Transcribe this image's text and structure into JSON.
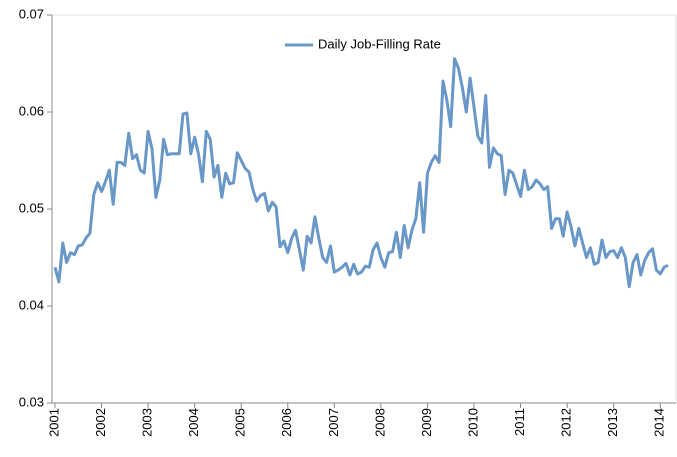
{
  "chart_data": {
    "type": "line",
    "categories": [
      "2001",
      null,
      null,
      null,
      null,
      null,
      null,
      null,
      null,
      null,
      null,
      null,
      "2002",
      null,
      null,
      null,
      null,
      null,
      null,
      null,
      null,
      null,
      null,
      null,
      "2003",
      null,
      null,
      null,
      null,
      null,
      null,
      null,
      null,
      null,
      null,
      null,
      "2004",
      null,
      null,
      null,
      null,
      null,
      null,
      null,
      null,
      null,
      null,
      null,
      "2005",
      null,
      null,
      null,
      null,
      null,
      null,
      null,
      null,
      null,
      null,
      null,
      "2006",
      null,
      null,
      null,
      null,
      null,
      null,
      null,
      null,
      null,
      null,
      null,
      "2007",
      null,
      null,
      null,
      null,
      null,
      null,
      null,
      null,
      null,
      null,
      null,
      "2008",
      null,
      null,
      null,
      null,
      null,
      null,
      null,
      null,
      null,
      null,
      null,
      "2009",
      null,
      null,
      null,
      null,
      null,
      null,
      null,
      null,
      null,
      null,
      null,
      "2010",
      null,
      null,
      null,
      null,
      null,
      null,
      null,
      null,
      null,
      null,
      null,
      "2011",
      null,
      null,
      null,
      null,
      null,
      null,
      null,
      null,
      null,
      null,
      null,
      "2012",
      null,
      null,
      null,
      null,
      null,
      null,
      null,
      null,
      null,
      null,
      null,
      "2013",
      null,
      null,
      null,
      null,
      null,
      null,
      null,
      null,
      null,
      null,
      null,
      "2014",
      null,
      null
    ],
    "series": [
      {
        "name": "Daily Job-Filling Rate",
        "color": "#6897c8",
        "values": [
          0.044,
          0.0425,
          0.0465,
          0.0445,
          0.0455,
          0.0453,
          0.0462,
          0.0463,
          0.047,
          0.0475,
          0.0515,
          0.0527,
          0.0518,
          0.0528,
          0.054,
          0.0505,
          0.0548,
          0.0548,
          0.0545,
          0.0578,
          0.0552,
          0.0556,
          0.054,
          0.0537,
          0.058,
          0.0562,
          0.0512,
          0.053,
          0.0572,
          0.0556,
          0.0557,
          0.0557,
          0.0557,
          0.0598,
          0.0599,
          0.0557,
          0.0574,
          0.0556,
          0.0528,
          0.058,
          0.0572,
          0.0533,
          0.0545,
          0.0512,
          0.0537,
          0.0526,
          0.0527,
          0.0558,
          0.055,
          0.0542,
          0.0538,
          0.052,
          0.0508,
          0.0514,
          0.0516,
          0.0498,
          0.0507,
          0.0502,
          0.0461,
          0.0467,
          0.0455,
          0.047,
          0.0478,
          0.0458,
          0.0437,
          0.0472,
          0.0465,
          0.0492,
          0.047,
          0.045,
          0.0445,
          0.0462,
          0.0435,
          0.0437,
          0.044,
          0.0444,
          0.0432,
          0.0443,
          0.0433,
          0.0435,
          0.0441,
          0.044,
          0.0458,
          0.0465,
          0.045,
          0.044,
          0.0455,
          0.0456,
          0.0476,
          0.045,
          0.0483,
          0.046,
          0.0478,
          0.049,
          0.0527,
          0.0476,
          0.0537,
          0.0548,
          0.0555,
          0.0548,
          0.0632,
          0.0612,
          0.0585,
          0.0655,
          0.0645,
          0.0625,
          0.06,
          0.0635,
          0.0605,
          0.0575,
          0.0568,
          0.0617,
          0.0543,
          0.0563,
          0.0557,
          0.0555,
          0.0515,
          0.054,
          0.0537,
          0.0525,
          0.0513,
          0.054,
          0.052,
          0.0523,
          0.053,
          0.0526,
          0.052,
          0.0523,
          0.048,
          0.049,
          0.049,
          0.0472,
          0.0497,
          0.0482,
          0.0462,
          0.048,
          0.0465,
          0.045,
          0.046,
          0.0443,
          0.0445,
          0.0468,
          0.045,
          0.0456,
          0.0457,
          0.045,
          0.046,
          0.045,
          0.042,
          0.0445,
          0.0453,
          0.0432,
          0.0447,
          0.0455,
          0.0459,
          0.0437,
          0.0433,
          0.044,
          0.0442
        ]
      }
    ],
    "ylim": [
      0.03,
      0.07
    ],
    "yticks": [
      0.03,
      0.04,
      0.05,
      0.06,
      0.07
    ],
    "grid": false,
    "legend": "top"
  }
}
